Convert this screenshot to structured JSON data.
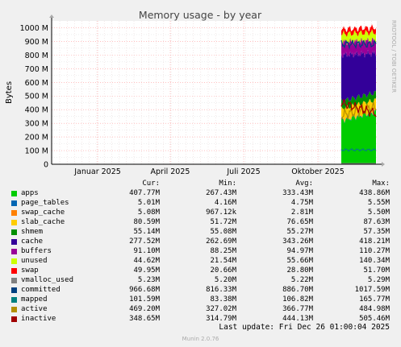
{
  "side_label": "RRDTOOL / TOBI OETIKER",
  "footer": {
    "last_update": "Last update: Fri Dec 26 01:00:04 2025",
    "version": "Munin 2.0.76"
  },
  "legend_header": {
    "cur": "Cur:",
    "min": "Min:",
    "avg": "Avg:",
    "max": "Max:"
  },
  "chart_data": {
    "type": "area",
    "title": "Memory usage - by year",
    "ylabel": "Bytes",
    "ylim": [
      0,
      1050
    ],
    "y_ticks": [
      "0",
      "100 M",
      "200 M",
      "300 M",
      "400 M",
      "500 M",
      "600 M",
      "700 M",
      "800 M",
      "900 M",
      "1000 M"
    ],
    "x_ticks": [
      "Januar 2025",
      "April 2025",
      "Juli 2025",
      "Oktober 2025"
    ],
    "grid": true,
    "series": [
      {
        "name": "apps",
        "color": "#00cc00",
        "cur": "407.77M",
        "min": "267.43M",
        "avg": "333.43M",
        "max": "438.86M"
      },
      {
        "name": "page_tables",
        "color": "#0066b3",
        "cur": "5.01M",
        "min": "4.16M",
        "avg": "4.75M",
        "max": "5.55M"
      },
      {
        "name": "swap_cache",
        "color": "#ff8000",
        "cur": "5.08M",
        "min": "967.12k",
        "avg": "2.81M",
        "max": "5.50M"
      },
      {
        "name": "slab_cache",
        "color": "#ffcc00",
        "cur": "80.59M",
        "min": "51.72M",
        "avg": "76.65M",
        "max": "87.63M"
      },
      {
        "name": "shmem",
        "color": "#008f00",
        "cur": "55.14M",
        "min": "55.08M",
        "avg": "55.27M",
        "max": "57.35M"
      },
      {
        "name": "cache",
        "color": "#330099",
        "cur": "277.52M",
        "min": "262.69M",
        "avg": "343.26M",
        "max": "418.21M"
      },
      {
        "name": "buffers",
        "color": "#990099",
        "cur": "91.10M",
        "min": "88.25M",
        "avg": "94.97M",
        "max": "110.27M"
      },
      {
        "name": "unused",
        "color": "#ccff00",
        "cur": "44.62M",
        "min": "21.54M",
        "avg": "55.66M",
        "max": "140.34M"
      },
      {
        "name": "swap",
        "color": "#ff0000",
        "cur": "49.95M",
        "min": "20.66M",
        "avg": "28.80M",
        "max": "51.70M"
      },
      {
        "name": "vmalloc_used",
        "color": "#808080",
        "cur": "5.23M",
        "min": "5.20M",
        "avg": "5.22M",
        "max": "5.29M"
      },
      {
        "name": "committed",
        "color": "#004080",
        "cur": "966.68M",
        "min": "816.33M",
        "avg": "886.70M",
        "max": "1017.59M"
      },
      {
        "name": "mapped",
        "color": "#008080",
        "cur": "101.59M",
        "min": "83.38M",
        "avg": "106.82M",
        "max": "165.77M"
      },
      {
        "name": "active",
        "color": "#b38f00",
        "cur": "469.20M",
        "min": "327.02M",
        "avg": "366.77M",
        "max": "484.98M"
      },
      {
        "name": "inactive",
        "color": "#a00000",
        "cur": "348.65M",
        "min": "314.79M",
        "avg": "444.13M",
        "max": "505.46M"
      }
    ]
  }
}
